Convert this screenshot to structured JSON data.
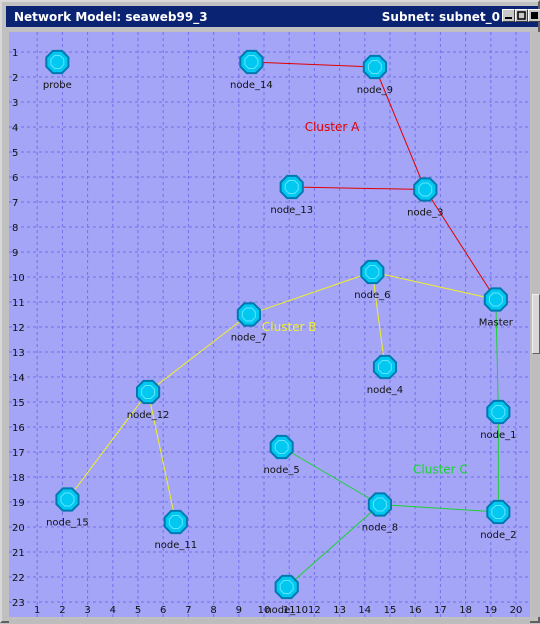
{
  "window": {
    "title_left": "Network Model: seaweb99_3",
    "title_right": "Subnet: subnet_0",
    "buttons": [
      "minimize-icon",
      "maximize-icon",
      "close-icon"
    ]
  },
  "grid": {
    "x_ticks": [
      "1",
      "2",
      "3",
      "4",
      "5",
      "6",
      "7",
      "8",
      "9",
      "10",
      "11",
      "12",
      "13",
      "14",
      "15",
      "16",
      "17",
      "18",
      "19",
      "20"
    ],
    "x_tick_values": [
      1,
      2,
      3,
      4,
      5,
      6,
      7,
      8,
      9,
      10,
      11,
      12,
      13,
      14,
      15,
      16,
      17,
      18,
      19,
      20
    ],
    "y_ticks": [
      "1",
      "2",
      "3",
      "4",
      "5",
      "6",
      "7",
      "8",
      "9",
      "10",
      "11",
      "12",
      "13",
      "14",
      "15",
      "16",
      "17",
      "18",
      "19",
      "20",
      "21",
      "22",
      "23"
    ],
    "y_tick_values": [
      1,
      2,
      3,
      4,
      5,
      6,
      7,
      8,
      9,
      10,
      11,
      12,
      13,
      14,
      15,
      16,
      17,
      18,
      19,
      20,
      21,
      22,
      23
    ]
  },
  "colors": {
    "canvas_bg": "#a5a5f7",
    "grid_line": "#7070ee",
    "node_fill": "#00c8f0",
    "node_stroke": "#0078b0",
    "cluster_a": "#e00000",
    "cluster_b": "#f0f028",
    "cluster_c": "#19d234"
  },
  "nodes": [
    {
      "id": "probe",
      "label": "probe",
      "x": 1.8,
      "y": 1.4
    },
    {
      "id": "node_14",
      "label": "node_14",
      "x": 9.5,
      "y": 1.4
    },
    {
      "id": "node_9",
      "label": "node_9",
      "x": 14.4,
      "y": 1.6
    },
    {
      "id": "node_13",
      "label": "node_13",
      "x": 11.1,
      "y": 6.4
    },
    {
      "id": "node_3",
      "label": "node_3",
      "x": 16.4,
      "y": 6.5
    },
    {
      "id": "node_6",
      "label": "node_6",
      "x": 14.3,
      "y": 9.8
    },
    {
      "id": "Master",
      "label": "Master",
      "x": 19.2,
      "y": 10.9
    },
    {
      "id": "node_7",
      "label": "node_7",
      "x": 9.4,
      "y": 11.5
    },
    {
      "id": "node_4",
      "label": "node_4",
      "x": 14.8,
      "y": 13.6
    },
    {
      "id": "node_12",
      "label": "node_12",
      "x": 5.4,
      "y": 14.6
    },
    {
      "id": "node_1",
      "label": "node_1",
      "x": 19.3,
      "y": 15.4
    },
    {
      "id": "node_5",
      "label": "node_5",
      "x": 10.7,
      "y": 16.8
    },
    {
      "id": "node_8",
      "label": "node_8",
      "x": 14.6,
      "y": 19.1
    },
    {
      "id": "node_2",
      "label": "node_2",
      "x": 19.3,
      "y": 19.4
    },
    {
      "id": "node_15",
      "label": "node_15",
      "x": 2.2,
      "y": 18.9
    },
    {
      "id": "node_11",
      "label": "node_11",
      "x": 6.5,
      "y": 19.8
    },
    {
      "id": "node_10",
      "label": "node_10",
      "x": 10.9,
      "y": 22.4
    }
  ],
  "edges": [
    {
      "from": "node_14",
      "to": "node_9",
      "cluster": "A"
    },
    {
      "from": "node_9",
      "to": "node_3",
      "cluster": "A"
    },
    {
      "from": "node_13",
      "to": "node_3",
      "cluster": "A"
    },
    {
      "from": "node_3",
      "to": "Master",
      "cluster": "A"
    },
    {
      "from": "Master",
      "to": "node_6",
      "cluster": "B"
    },
    {
      "from": "node_6",
      "to": "node_7",
      "cluster": "B"
    },
    {
      "from": "node_6",
      "to": "node_4",
      "cluster": "B"
    },
    {
      "from": "node_7",
      "to": "node_12",
      "cluster": "B"
    },
    {
      "from": "node_12",
      "to": "node_15",
      "cluster": "B"
    },
    {
      "from": "node_12",
      "to": "node_11",
      "cluster": "B"
    },
    {
      "from": "Master",
      "to": "node_1",
      "cluster": "C"
    },
    {
      "from": "node_1",
      "to": "node_2",
      "cluster": "C"
    },
    {
      "from": "node_2",
      "to": "node_8",
      "cluster": "C"
    },
    {
      "from": "node_8",
      "to": "node_5",
      "cluster": "C"
    },
    {
      "from": "node_8",
      "to": "node_10",
      "cluster": "C"
    }
  ],
  "clusters": [
    {
      "id": "A",
      "label": "Cluster A",
      "x": 12.7,
      "y": 4.0
    },
    {
      "id": "B",
      "label": "Cluster B",
      "x": 11.0,
      "y": 12.0
    },
    {
      "id": "C",
      "label": "Cluster C",
      "x": 17.0,
      "y": 17.7
    }
  ]
}
